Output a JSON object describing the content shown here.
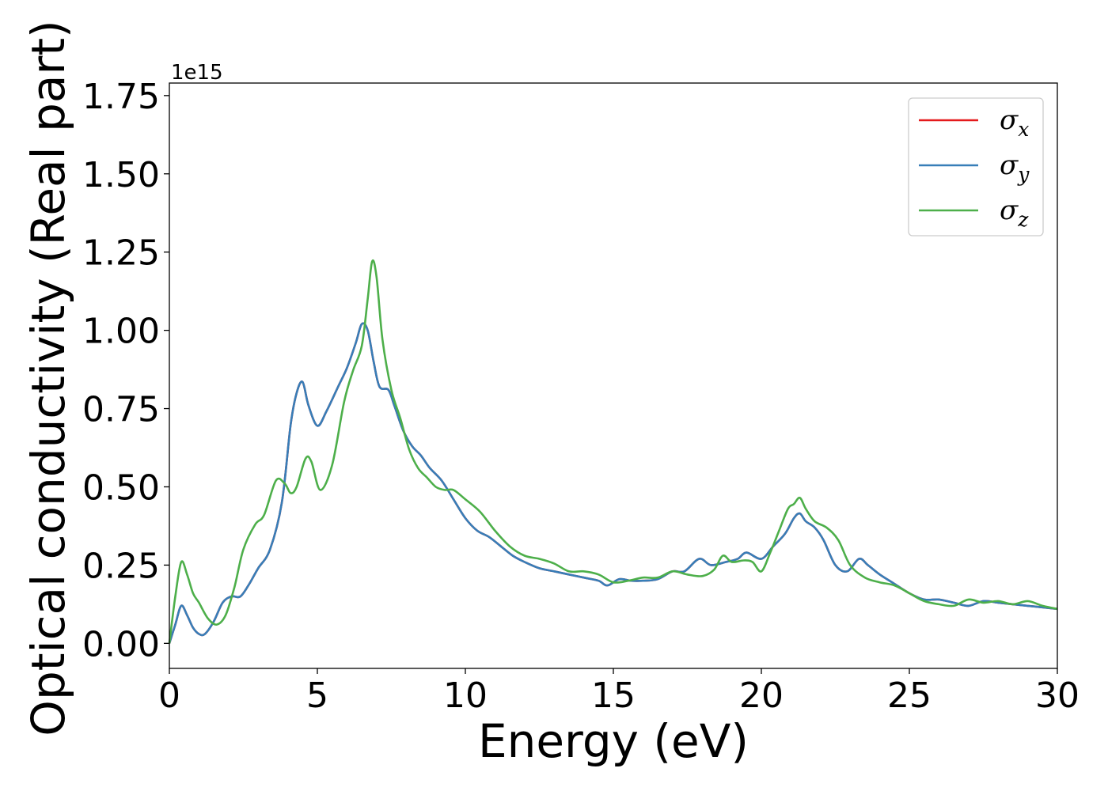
{
  "chart_data": {
    "type": "line",
    "title": "",
    "xlabel": "Energy (eV)",
    "ylabel": "Optical conductivity (Real part)",
    "y_offset_label": "1e15",
    "xlim": [
      0,
      30
    ],
    "ylim": [
      -0.08,
      1.79
    ],
    "x_ticks": [
      0,
      5,
      10,
      15,
      20,
      25,
      30
    ],
    "x_tick_labels": [
      "0",
      "5",
      "10",
      "15",
      "20",
      "25",
      "30"
    ],
    "y_ticks": [
      0,
      0.25,
      0.5,
      0.75,
      1.0,
      1.25,
      1.5,
      1.75
    ],
    "y_tick_labels": [
      "0.00",
      "0.25",
      "0.50",
      "0.75",
      "1.00",
      "1.25",
      "1.50",
      "1.75"
    ],
    "grid": false,
    "legend_position": "top-right",
    "series": [
      {
        "name": "σx",
        "legend_base": "σ",
        "legend_sub": "x",
        "color": "#e41a1c",
        "x": [
          0,
          0.2,
          0.4,
          0.6,
          0.8,
          1.0,
          1.2,
          1.5,
          1.8,
          2.1,
          2.4,
          2.7,
          3.0,
          3.4,
          3.8,
          4.1,
          4.3,
          4.5,
          4.7,
          5.0,
          5.3,
          5.7,
          6.0,
          6.3,
          6.5,
          6.7,
          6.9,
          7.1,
          7.4,
          7.6,
          7.9,
          8.2,
          8.5,
          8.8,
          9.2,
          9.6,
          10.0,
          10.4,
          10.8,
          11.2,
          11.6,
          12.0,
          12.5,
          13.0,
          13.5,
          14.0,
          14.5,
          14.8,
          15.2,
          15.6,
          16.0,
          16.5,
          17.0,
          17.4,
          17.9,
          18.3,
          18.8,
          19.2,
          19.5,
          20.0,
          20.4,
          20.8,
          21.1,
          21.3,
          21.5,
          21.8,
          22.1,
          22.5,
          22.9,
          23.3,
          23.6,
          24.0,
          24.5,
          25.0,
          25.5,
          26.0,
          26.5,
          27.0,
          27.5,
          28.0,
          28.5,
          29.0,
          29.5,
          30.0
        ],
        "y": [
          0,
          0.06,
          0.12,
          0.09,
          0.05,
          0.03,
          0.03,
          0.07,
          0.13,
          0.15,
          0.15,
          0.19,
          0.24,
          0.3,
          0.45,
          0.7,
          0.8,
          0.835,
          0.76,
          0.695,
          0.74,
          0.82,
          0.88,
          0.96,
          1.02,
          1.0,
          0.9,
          0.82,
          0.81,
          0.76,
          0.68,
          0.63,
          0.6,
          0.56,
          0.52,
          0.46,
          0.4,
          0.36,
          0.34,
          0.31,
          0.28,
          0.26,
          0.24,
          0.23,
          0.22,
          0.21,
          0.2,
          0.185,
          0.205,
          0.2,
          0.2,
          0.205,
          0.23,
          0.23,
          0.27,
          0.25,
          0.26,
          0.27,
          0.29,
          0.27,
          0.31,
          0.35,
          0.4,
          0.415,
          0.39,
          0.37,
          0.33,
          0.25,
          0.23,
          0.27,
          0.25,
          0.22,
          0.19,
          0.16,
          0.14,
          0.14,
          0.13,
          0.12,
          0.135,
          0.13,
          0.125,
          0.12,
          0.115,
          0.11
        ]
      },
      {
        "name": "σy",
        "legend_base": "σ",
        "legend_sub": "y",
        "color": "#377eb8",
        "x": [
          0,
          0.2,
          0.4,
          0.6,
          0.8,
          1.0,
          1.2,
          1.5,
          1.8,
          2.1,
          2.4,
          2.7,
          3.0,
          3.4,
          3.8,
          4.1,
          4.3,
          4.5,
          4.7,
          5.0,
          5.3,
          5.7,
          6.0,
          6.3,
          6.5,
          6.7,
          6.9,
          7.1,
          7.4,
          7.6,
          7.9,
          8.2,
          8.5,
          8.8,
          9.2,
          9.6,
          10.0,
          10.4,
          10.8,
          11.2,
          11.6,
          12.0,
          12.5,
          13.0,
          13.5,
          14.0,
          14.5,
          14.8,
          15.2,
          15.6,
          16.0,
          16.5,
          17.0,
          17.4,
          17.9,
          18.3,
          18.8,
          19.2,
          19.5,
          20.0,
          20.4,
          20.8,
          21.1,
          21.3,
          21.5,
          21.8,
          22.1,
          22.5,
          22.9,
          23.3,
          23.6,
          24.0,
          24.5,
          25.0,
          25.5,
          26.0,
          26.5,
          27.0,
          27.5,
          28.0,
          28.5,
          29.0,
          29.5,
          30.0
        ],
        "y": [
          0,
          0.06,
          0.12,
          0.09,
          0.05,
          0.03,
          0.03,
          0.07,
          0.13,
          0.15,
          0.15,
          0.19,
          0.24,
          0.3,
          0.45,
          0.7,
          0.8,
          0.835,
          0.76,
          0.695,
          0.74,
          0.82,
          0.88,
          0.96,
          1.02,
          1.0,
          0.9,
          0.82,
          0.81,
          0.76,
          0.68,
          0.63,
          0.6,
          0.56,
          0.52,
          0.46,
          0.4,
          0.36,
          0.34,
          0.31,
          0.28,
          0.26,
          0.24,
          0.23,
          0.22,
          0.21,
          0.2,
          0.185,
          0.205,
          0.2,
          0.2,
          0.205,
          0.23,
          0.23,
          0.27,
          0.25,
          0.26,
          0.27,
          0.29,
          0.27,
          0.31,
          0.35,
          0.4,
          0.415,
          0.39,
          0.37,
          0.33,
          0.25,
          0.23,
          0.27,
          0.25,
          0.22,
          0.19,
          0.16,
          0.14,
          0.14,
          0.13,
          0.12,
          0.135,
          0.13,
          0.125,
          0.12,
          0.115,
          0.11
        ]
      },
      {
        "name": "σz",
        "legend_base": "σ",
        "legend_sub": "z",
        "color": "#4daf4a",
        "x": [
          0,
          0.2,
          0.4,
          0.6,
          0.8,
          1.0,
          1.3,
          1.6,
          1.9,
          2.2,
          2.5,
          2.9,
          3.2,
          3.6,
          3.9,
          4.1,
          4.3,
          4.6,
          4.8,
          5.1,
          5.5,
          5.9,
          6.2,
          6.5,
          6.7,
          6.85,
          7.0,
          7.2,
          7.5,
          7.8,
          8.1,
          8.4,
          8.7,
          9.0,
          9.3,
          9.6,
          10.0,
          10.5,
          11.0,
          11.5,
          12.0,
          12.5,
          13.0,
          13.5,
          14.0,
          14.5,
          15.0,
          15.5,
          16.0,
          16.5,
          17.0,
          17.5,
          18.0,
          18.4,
          18.7,
          19.0,
          19.4,
          19.7,
          20.0,
          20.3,
          20.6,
          20.9,
          21.1,
          21.3,
          21.5,
          21.8,
          22.2,
          22.6,
          23.0,
          23.5,
          24.0,
          24.5,
          25.0,
          25.5,
          26.0,
          26.5,
          27.0,
          27.5,
          28.0,
          28.5,
          29.0,
          29.5,
          30.0
        ],
        "y": [
          0,
          0.15,
          0.26,
          0.22,
          0.16,
          0.13,
          0.08,
          0.06,
          0.09,
          0.18,
          0.3,
          0.38,
          0.41,
          0.52,
          0.51,
          0.48,
          0.5,
          0.59,
          0.58,
          0.49,
          0.57,
          0.77,
          0.87,
          0.95,
          1.1,
          1.22,
          1.17,
          0.97,
          0.81,
          0.72,
          0.62,
          0.56,
          0.53,
          0.5,
          0.49,
          0.49,
          0.46,
          0.42,
          0.36,
          0.31,
          0.28,
          0.27,
          0.255,
          0.23,
          0.23,
          0.22,
          0.195,
          0.2,
          0.21,
          0.21,
          0.23,
          0.22,
          0.215,
          0.235,
          0.28,
          0.26,
          0.265,
          0.26,
          0.23,
          0.29,
          0.36,
          0.43,
          0.445,
          0.465,
          0.43,
          0.39,
          0.37,
          0.33,
          0.25,
          0.21,
          0.195,
          0.185,
          0.16,
          0.135,
          0.125,
          0.12,
          0.14,
          0.13,
          0.135,
          0.125,
          0.135,
          0.12,
          0.11
        ]
      }
    ]
  }
}
